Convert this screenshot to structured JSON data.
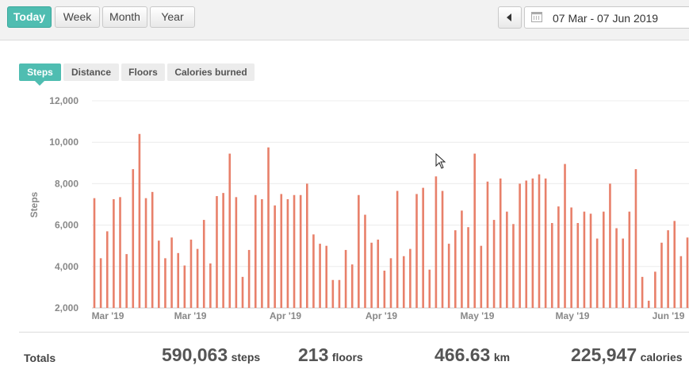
{
  "period_buttons": [
    "Today",
    "Week",
    "Month",
    "Year"
  ],
  "date_range": "07 Mar - 07 Jun 2019",
  "metric_tabs": [
    "Steps",
    "Distance",
    "Floors",
    "Calories burned"
  ],
  "totals": {
    "label": "Totals",
    "steps": "590,063",
    "steps_unit": "steps",
    "floors": "213",
    "floors_unit": "floors",
    "km": "466.63",
    "km_unit": "km",
    "calories": "225,947",
    "calories_unit": "calories"
  },
  "colors": {
    "accent": "#4fbdb1",
    "bar": "#e8806a"
  },
  "chart_data": {
    "type": "bar",
    "ylabel": "Steps",
    "ylim": [
      2000,
      12000
    ],
    "yticks": [
      "2,000",
      "4,000",
      "6,000",
      "8,000",
      "10,000",
      "12,000"
    ],
    "xtick_labels": [
      "Mar '19",
      "Mar '19",
      "Apr '19",
      "Apr '19",
      "May '19",
      "May '19",
      "Jun '19"
    ],
    "grid": true,
    "values": [
      7300,
      4400,
      5700,
      7250,
      7350,
      4600,
      8700,
      10400,
      7300,
      7600,
      5250,
      4400,
      5400,
      4650,
      4050,
      5300,
      4850,
      6250,
      4150,
      7400,
      7550,
      9450,
      7350,
      3500,
      4800,
      7450,
      7250,
      9750,
      6950,
      7500,
      7250,
      7450,
      7450,
      8000,
      5550,
      5100,
      5000,
      3350,
      3350,
      4800,
      4100,
      7450,
      6500,
      5150,
      5300,
      3800,
      4400,
      7650,
      4500,
      4850,
      7500,
      7800,
      3850,
      8350,
      7650,
      5100,
      5750,
      6700,
      5900,
      9450,
      5000,
      8100,
      6250,
      8250,
      6650,
      6050,
      8000,
      8150,
      8250,
      8450,
      8250,
      6100,
      6900,
      8950,
      6850,
      6100,
      6650,
      6550,
      5350,
      6650,
      8000,
      5850,
      5350,
      6650,
      8700,
      3500,
      2350,
      3750,
      5150,
      5750,
      6200,
      4500,
      5400
    ]
  }
}
